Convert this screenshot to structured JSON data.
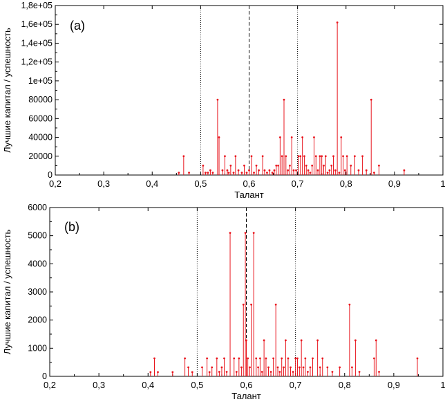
{
  "chart_data": [
    {
      "type": "stem",
      "panel_label": "(a)",
      "xlabel": "Талант",
      "ylabel": "Лучшие капитал / успешность",
      "xlim": [
        0.2,
        1.0
      ],
      "ylim": [
        0,
        180000
      ],
      "xticks": [
        0.2,
        0.3,
        0.4,
        0.5,
        0.6,
        0.7,
        0.8,
        0.9,
        1.0
      ],
      "xtick_labels": [
        "0,2",
        "0,3",
        "0,4",
        "0,5",
        "0,6",
        "0,7",
        "0,8",
        "0,9",
        "1"
      ],
      "yticks": [
        0,
        20000,
        40000,
        60000,
        80000,
        100000,
        120000,
        140000,
        160000,
        180000
      ],
      "ytick_labels": [
        "0",
        "20000",
        "40000",
        "60000",
        "80000",
        "1e+05",
        "1,2e+05",
        "1,4e+05",
        "1,6e+05",
        "1,8e+05"
      ],
      "reference_lines": [
        {
          "x": 0.5,
          "style": "dotted"
        },
        {
          "x": 0.6,
          "style": "dashed"
        },
        {
          "x": 0.7,
          "style": "dotted"
        }
      ],
      "grid": false,
      "color": "#e8141c",
      "points": [
        [
          0.455,
          2500
        ],
        [
          0.465,
          20000
        ],
        [
          0.476,
          2500
        ],
        [
          0.505,
          10000
        ],
        [
          0.51,
          2500
        ],
        [
          0.515,
          2500
        ],
        [
          0.52,
          5000
        ],
        [
          0.525,
          2500
        ],
        [
          0.535,
          80000
        ],
        [
          0.538,
          40000
        ],
        [
          0.545,
          5000
        ],
        [
          0.55,
          20000
        ],
        [
          0.555,
          5000
        ],
        [
          0.558,
          2500
        ],
        [
          0.562,
          10000
        ],
        [
          0.568,
          2500
        ],
        [
          0.572,
          20000
        ],
        [
          0.578,
          5000
        ],
        [
          0.585,
          2500
        ],
        [
          0.59,
          10000
        ],
        [
          0.595,
          2500
        ],
        [
          0.6,
          5000
        ],
        [
          0.605,
          20000
        ],
        [
          0.61,
          2500
        ],
        [
          0.615,
          10000
        ],
        [
          0.62,
          5000
        ],
        [
          0.628,
          20000
        ],
        [
          0.632,
          5000
        ],
        [
          0.637,
          2500
        ],
        [
          0.642,
          5000
        ],
        [
          0.648,
          2500
        ],
        [
          0.652,
          5000
        ],
        [
          0.656,
          10000
        ],
        [
          0.66,
          10000
        ],
        [
          0.664,
          40000
        ],
        [
          0.668,
          20000
        ],
        [
          0.672,
          80000
        ],
        [
          0.676,
          20000
        ],
        [
          0.68,
          5000
        ],
        [
          0.684,
          10000
        ],
        [
          0.688,
          40000
        ],
        [
          0.692,
          5000
        ],
        [
          0.697,
          5000
        ],
        [
          0.702,
          20000
        ],
        [
          0.706,
          20000
        ],
        [
          0.71,
          40000
        ],
        [
          0.714,
          20000
        ],
        [
          0.718,
          10000
        ],
        [
          0.722,
          5000
        ],
        [
          0.726,
          2500
        ],
        [
          0.73,
          10000
        ],
        [
          0.734,
          40000
        ],
        [
          0.738,
          20000
        ],
        [
          0.742,
          5000
        ],
        [
          0.746,
          20000
        ],
        [
          0.75,
          20000
        ],
        [
          0.754,
          10000
        ],
        [
          0.758,
          20000
        ],
        [
          0.762,
          2500
        ],
        [
          0.766,
          5000
        ],
        [
          0.77,
          10000
        ],
        [
          0.774,
          20000
        ],
        [
          0.778,
          5000
        ],
        [
          0.782,
          162000
        ],
        [
          0.786,
          2500
        ],
        [
          0.79,
          40000
        ],
        [
          0.794,
          20000
        ],
        [
          0.798,
          5000
        ],
        [
          0.802,
          20000
        ],
        [
          0.81,
          10000
        ],
        [
          0.818,
          20000
        ],
        [
          0.826,
          5000
        ],
        [
          0.834,
          20000
        ],
        [
          0.842,
          5000
        ],
        [
          0.852,
          80000
        ],
        [
          0.858,
          2500
        ],
        [
          0.868,
          10000
        ],
        [
          0.92,
          5000
        ]
      ]
    },
    {
      "type": "stem",
      "panel_label": "(b)",
      "xlabel": "Талант",
      "ylabel": "Лучшие капитал / успешность",
      "xlim": [
        0.2,
        1.0
      ],
      "ylim": [
        0,
        6000
      ],
      "xticks": [
        0.2,
        0.3,
        0.4,
        0.5,
        0.6,
        0.7,
        0.8,
        0.9,
        1.0
      ],
      "xtick_labels": [
        "0,2",
        "0,3",
        "0,4",
        "0,5",
        "0,6",
        "0,7",
        "0,8",
        "0,9",
        "1"
      ],
      "yticks": [
        0,
        1000,
        2000,
        3000,
        4000,
        5000,
        6000
      ],
      "ytick_labels": [
        "0",
        "1000",
        "2000",
        "3000",
        "4000",
        "5000",
        "6000"
      ],
      "reference_lines": [
        {
          "x": 0.5,
          "style": "dotted"
        },
        {
          "x": 0.6,
          "style": "dashed"
        },
        {
          "x": 0.7,
          "style": "dotted"
        }
      ],
      "grid": false,
      "color": "#e8141c",
      "points": [
        [
          0.405,
          150
        ],
        [
          0.413,
          640
        ],
        [
          0.42,
          150
        ],
        [
          0.45,
          150
        ],
        [
          0.475,
          640
        ],
        [
          0.482,
          320
        ],
        [
          0.49,
          150
        ],
        [
          0.51,
          320
        ],
        [
          0.52,
          640
        ],
        [
          0.525,
          150
        ],
        [
          0.53,
          320
        ],
        [
          0.54,
          640
        ],
        [
          0.545,
          160
        ],
        [
          0.55,
          320
        ],
        [
          0.555,
          640
        ],
        [
          0.56,
          160
        ],
        [
          0.567,
          5100
        ],
        [
          0.575,
          640
        ],
        [
          0.58,
          160
        ],
        [
          0.585,
          640
        ],
        [
          0.59,
          320
        ],
        [
          0.594,
          2550
        ],
        [
          0.598,
          5100
        ],
        [
          0.6,
          1280
        ],
        [
          0.603,
          640
        ],
        [
          0.607,
          320
        ],
        [
          0.61,
          2550
        ],
        [
          0.615,
          5100
        ],
        [
          0.62,
          640
        ],
        [
          0.624,
          320
        ],
        [
          0.628,
          640
        ],
        [
          0.632,
          160
        ],
        [
          0.636,
          1280
        ],
        [
          0.64,
          640
        ],
        [
          0.645,
          320
        ],
        [
          0.65,
          160
        ],
        [
          0.655,
          640
        ],
        [
          0.66,
          2550
        ],
        [
          0.664,
          320
        ],
        [
          0.668,
          160
        ],
        [
          0.672,
          640
        ],
        [
          0.676,
          320
        ],
        [
          0.68,
          1280
        ],
        [
          0.685,
          640
        ],
        [
          0.69,
          320
        ],
        [
          0.695,
          160
        ],
        [
          0.7,
          640
        ],
        [
          0.704,
          640
        ],
        [
          0.708,
          320
        ],
        [
          0.712,
          1280
        ],
        [
          0.716,
          320
        ],
        [
          0.72,
          640
        ],
        [
          0.725,
          160
        ],
        [
          0.73,
          320
        ],
        [
          0.735,
          640
        ],
        [
          0.745,
          1280
        ],
        [
          0.75,
          320
        ],
        [
          0.755,
          640
        ],
        [
          0.765,
          320
        ],
        [
          0.775,
          160
        ],
        [
          0.79,
          320
        ],
        [
          0.81,
          2550
        ],
        [
          0.815,
          320
        ],
        [
          0.822,
          1280
        ],
        [
          0.83,
          160
        ],
        [
          0.86,
          640
        ],
        [
          0.864,
          1280
        ],
        [
          0.87,
          160
        ],
        [
          0.948,
          640
        ]
      ]
    }
  ]
}
